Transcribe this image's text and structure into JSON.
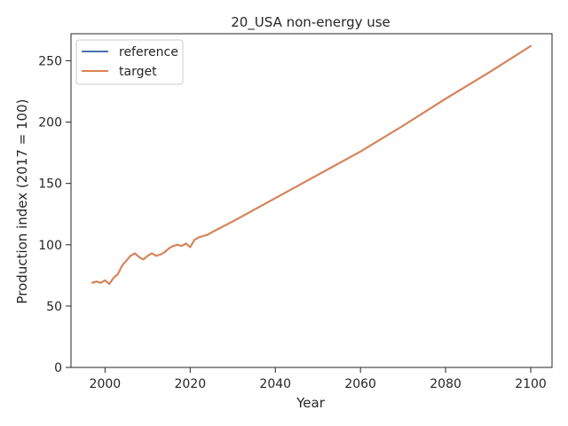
{
  "chart_data": {
    "type": "line",
    "title": "20_USA non-energy use",
    "xlabel": "Year",
    "ylabel": "Production index (2017 = 100)",
    "xlim": [
      1992,
      2105
    ],
    "ylim": [
      0,
      272
    ],
    "xticks": [
      2000,
      2020,
      2040,
      2060,
      2080,
      2100
    ],
    "yticks": [
      0,
      50,
      100,
      150,
      200,
      250
    ],
    "grid": false,
    "legend_placement": "top-left",
    "series": [
      {
        "name": "reference",
        "color": "#4c72b0",
        "x": [
          1997,
          1998,
          1999,
          2000,
          2001,
          2002,
          2003,
          2004,
          2005,
          2006,
          2007,
          2008,
          2009,
          2010,
          2011,
          2012,
          2013,
          2014,
          2015,
          2016,
          2017,
          2018,
          2019,
          2020,
          2021,
          2022,
          2023,
          2024,
          2025,
          2030,
          2040,
          2050,
          2060,
          2070,
          2080,
          2090,
          2100
        ],
        "y": [
          69,
          70,
          69,
          71,
          68,
          73,
          76,
          83,
          87,
          91,
          93,
          90,
          88,
          91,
          93,
          91,
          92,
          94,
          97,
          99,
          100,
          99,
          101,
          98,
          104,
          106,
          107,
          108,
          110,
          119,
          138,
          157,
          176,
          197,
          219,
          240,
          262
        ]
      },
      {
        "name": "target",
        "color": "#dd8452",
        "x": [
          1997,
          1998,
          1999,
          2000,
          2001,
          2002,
          2003,
          2004,
          2005,
          2006,
          2007,
          2008,
          2009,
          2010,
          2011,
          2012,
          2013,
          2014,
          2015,
          2016,
          2017,
          2018,
          2019,
          2020,
          2021,
          2022,
          2023,
          2024,
          2025,
          2030,
          2040,
          2050,
          2060,
          2070,
          2080,
          2090,
          2100
        ],
        "y": [
          69,
          70,
          69,
          71,
          68,
          73,
          76,
          83,
          87,
          91,
          93,
          90,
          88,
          91,
          93,
          91,
          92,
          94,
          97,
          99,
          100,
          99,
          101,
          98,
          104,
          106,
          107,
          108,
          110,
          119,
          138,
          157,
          176,
          197,
          219,
          240,
          262
        ]
      }
    ]
  }
}
